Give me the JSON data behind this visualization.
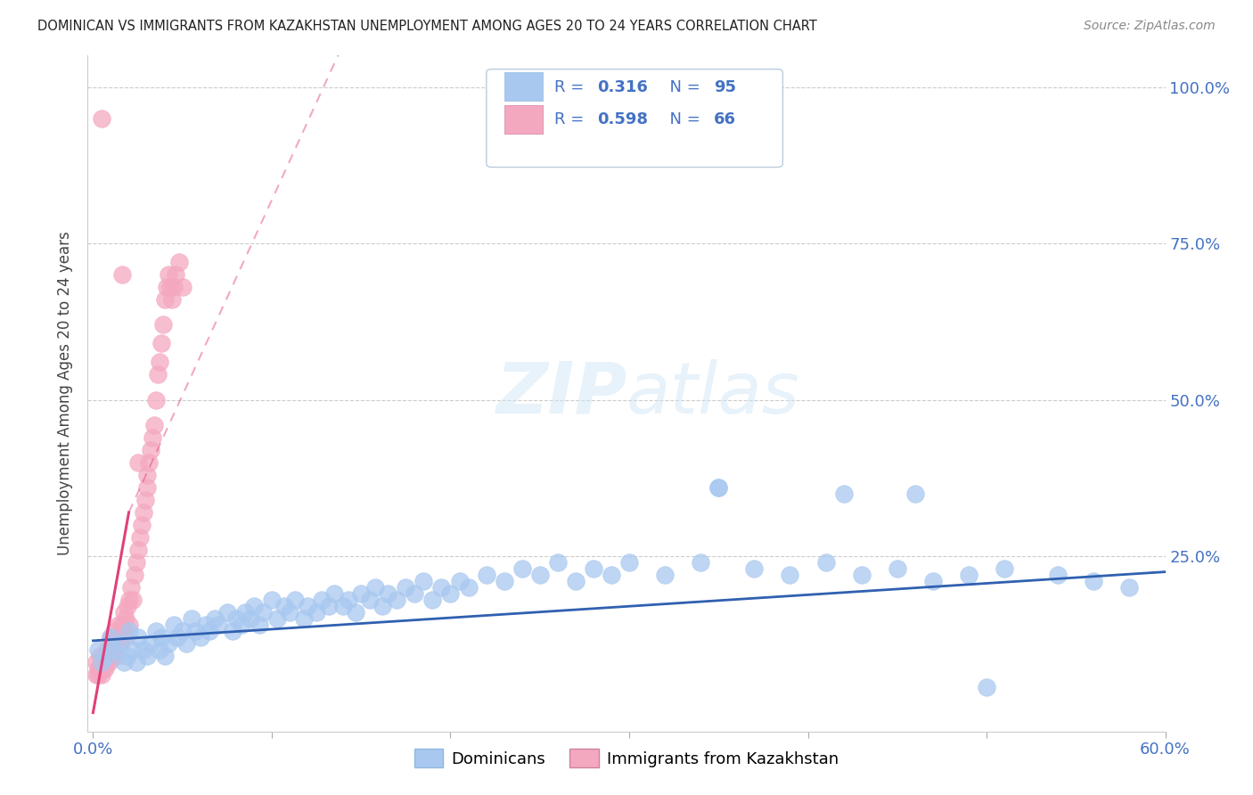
{
  "title": "DOMINICAN VS IMMIGRANTS FROM KAZAKHSTAN UNEMPLOYMENT AMONG AGES 20 TO 24 YEARS CORRELATION CHART",
  "source": "Source: ZipAtlas.com",
  "ylabel": "Unemployment Among Ages 20 to 24 years",
  "xlim": [
    -0.003,
    0.6
  ],
  "ylim": [
    -0.03,
    1.05
  ],
  "watermark": "ZIPatlas",
  "dom_color": "#a8c8f0",
  "dom_line_color": "#3060b0",
  "kaz_color": "#f4a8c0",
  "kaz_line_color": "#e0407a",
  "grid_color": "#cccccc",
  "title_color": "#222222",
  "source_color": "#888888",
  "axis_label_color": "#4472c4",
  "ylabel_color": "#444444",
  "legend_border": "#bbccdd",
  "dom_x": [
    0.003,
    0.005,
    0.008,
    0.01,
    0.012,
    0.015,
    0.017,
    0.019,
    0.02,
    0.022,
    0.024,
    0.025,
    0.028,
    0.03,
    0.032,
    0.035,
    0.037,
    0.038,
    0.04,
    0.042,
    0.045,
    0.047,
    0.05,
    0.052,
    0.055,
    0.057,
    0.06,
    0.063,
    0.065,
    0.068,
    0.07,
    0.075,
    0.078,
    0.08,
    0.083,
    0.085,
    0.088,
    0.09,
    0.093,
    0.095,
    0.1,
    0.103,
    0.107,
    0.11,
    0.113,
    0.118,
    0.12,
    0.125,
    0.128,
    0.132,
    0.135,
    0.14,
    0.143,
    0.147,
    0.15,
    0.155,
    0.158,
    0.162,
    0.165,
    0.17,
    0.175,
    0.18,
    0.185,
    0.19,
    0.195,
    0.2,
    0.205,
    0.21,
    0.22,
    0.23,
    0.24,
    0.25,
    0.26,
    0.27,
    0.28,
    0.29,
    0.3,
    0.32,
    0.34,
    0.35,
    0.37,
    0.39,
    0.41,
    0.43,
    0.45,
    0.47,
    0.49,
    0.51,
    0.54,
    0.56,
    0.58,
    0.35,
    0.42,
    0.46,
    0.5
  ],
  "dom_y": [
    0.1,
    0.08,
    0.09,
    0.12,
    0.1,
    0.11,
    0.08,
    0.09,
    0.13,
    0.1,
    0.08,
    0.12,
    0.1,
    0.09,
    0.11,
    0.13,
    0.1,
    0.12,
    0.09,
    0.11,
    0.14,
    0.12,
    0.13,
    0.11,
    0.15,
    0.13,
    0.12,
    0.14,
    0.13,
    0.15,
    0.14,
    0.16,
    0.13,
    0.15,
    0.14,
    0.16,
    0.15,
    0.17,
    0.14,
    0.16,
    0.18,
    0.15,
    0.17,
    0.16,
    0.18,
    0.15,
    0.17,
    0.16,
    0.18,
    0.17,
    0.19,
    0.17,
    0.18,
    0.16,
    0.19,
    0.18,
    0.2,
    0.17,
    0.19,
    0.18,
    0.2,
    0.19,
    0.21,
    0.18,
    0.2,
    0.19,
    0.21,
    0.2,
    0.22,
    0.21,
    0.23,
    0.22,
    0.24,
    0.21,
    0.23,
    0.22,
    0.24,
    0.22,
    0.24,
    0.36,
    0.23,
    0.22,
    0.24,
    0.22,
    0.23,
    0.21,
    0.22,
    0.23,
    0.22,
    0.21,
    0.2,
    0.36,
    0.35,
    0.35,
    0.04
  ],
  "kaz_x": [
    0.002,
    0.003,
    0.004,
    0.005,
    0.005,
    0.006,
    0.006,
    0.007,
    0.007,
    0.008,
    0.008,
    0.009,
    0.009,
    0.01,
    0.01,
    0.011,
    0.011,
    0.012,
    0.012,
    0.013,
    0.013,
    0.014,
    0.015,
    0.015,
    0.016,
    0.017,
    0.017,
    0.018,
    0.018,
    0.019,
    0.02,
    0.02,
    0.021,
    0.022,
    0.023,
    0.024,
    0.025,
    0.026,
    0.027,
    0.028,
    0.029,
    0.03,
    0.03,
    0.031,
    0.032,
    0.033,
    0.034,
    0.035,
    0.036,
    0.037,
    0.038,
    0.039,
    0.04,
    0.041,
    0.042,
    0.043,
    0.044,
    0.045,
    0.046,
    0.048,
    0.05,
    0.002,
    0.003,
    0.004,
    0.016,
    0.025
  ],
  "kaz_y": [
    0.08,
    0.07,
    0.09,
    0.95,
    0.06,
    0.08,
    0.07,
    0.09,
    0.07,
    0.1,
    0.08,
    0.1,
    0.08,
    0.12,
    0.09,
    0.11,
    0.09,
    0.13,
    0.1,
    0.12,
    0.09,
    0.14,
    0.13,
    0.11,
    0.14,
    0.16,
    0.13,
    0.15,
    0.12,
    0.17,
    0.18,
    0.14,
    0.2,
    0.18,
    0.22,
    0.24,
    0.26,
    0.28,
    0.3,
    0.32,
    0.34,
    0.38,
    0.36,
    0.4,
    0.42,
    0.44,
    0.46,
    0.5,
    0.54,
    0.56,
    0.59,
    0.62,
    0.66,
    0.68,
    0.7,
    0.68,
    0.66,
    0.68,
    0.7,
    0.72,
    0.68,
    0.06,
    0.06,
    0.07,
    0.7,
    0.4
  ],
  "dom_trend_x0": 0.0,
  "dom_trend_x1": 0.6,
  "dom_trend_y0": 0.115,
  "dom_trend_y1": 0.225,
  "kaz_trend_solid_x0": 0.0,
  "kaz_trend_solid_x1": 0.02,
  "kaz_trend_dash_x1": 0.145,
  "kaz_trend_y0": 0.0,
  "kaz_trend_slope": 16.0
}
